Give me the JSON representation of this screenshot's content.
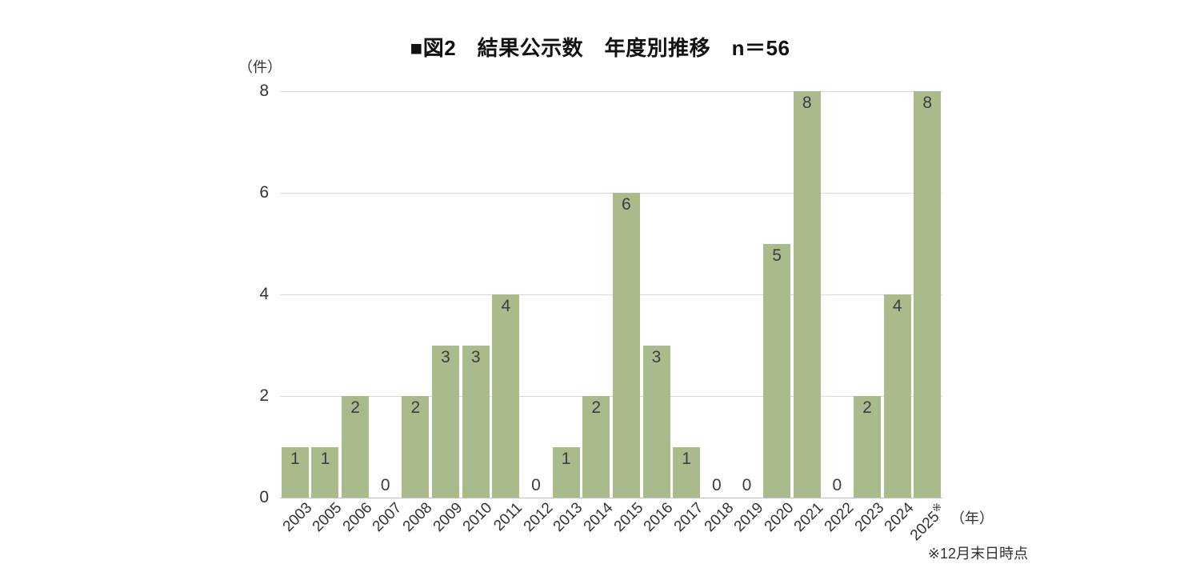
{
  "chart": {
    "title": "■図2　結果公示数　年度別推移　n＝56",
    "y_unit_label": "（件）",
    "x_unit_label": "（年）",
    "footnote": "※12月末日時点",
    "colors": {
      "bar": "#aabb8b",
      "gridline": "#d9d9d9",
      "axis": "#bfbfbf",
      "text": "#333333",
      "title": "#111111"
    }
  },
  "chart_data": {
    "type": "bar",
    "title": "■図2　結果公示数　年度別推移　n＝56",
    "n_total": 56,
    "categories": [
      "2003",
      "2005",
      "2006",
      "2007",
      "2008",
      "2009",
      "2010",
      "2011",
      "2012",
      "2013",
      "2014",
      "2015",
      "2016",
      "2017",
      "2018",
      "2019",
      "2020",
      "2021",
      "2022",
      "2023",
      "2024",
      "2025"
    ],
    "values": [
      1,
      1,
      2,
      0,
      2,
      3,
      3,
      4,
      0,
      1,
      2,
      6,
      3,
      1,
      0,
      0,
      5,
      8,
      0,
      2,
      4,
      8
    ],
    "last_category_mark": "※",
    "xlabel": "（年）",
    "ylabel": "（件）",
    "ylim": [
      0,
      8
    ],
    "yticks": [
      0,
      2,
      4,
      6,
      8
    ],
    "grid": true,
    "legend": false,
    "data_labels": true
  }
}
